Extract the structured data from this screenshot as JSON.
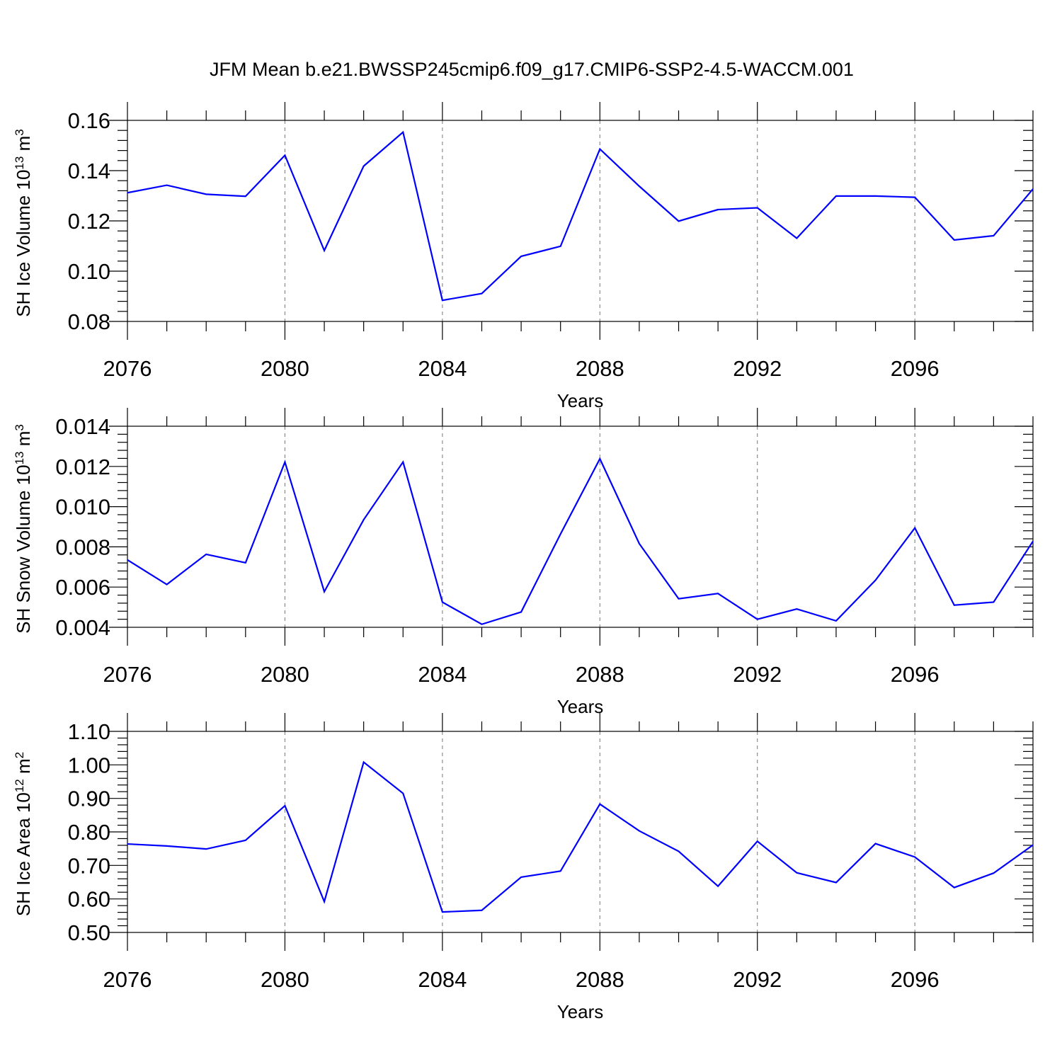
{
  "figure": {
    "title": "JFM Mean b.e21.BWSSP245cmip6.f09_g17.CMIP6-SSP2-4.5-WACCM.001",
    "line_color": "#0000ff"
  },
  "chart_data": [
    {
      "type": "line",
      "title": "",
      "xlabel": "Years",
      "ylabel": {
        "text": "SH Ice Volume 10",
        "exp": "13",
        "unit": " m",
        "unit_exp": "3"
      },
      "xlim": [
        2076,
        2099
      ],
      "ylim": [
        0.08,
        0.16
      ],
      "xticks": [
        "2076",
        "2080",
        "2084",
        "2088",
        "2092",
        "2096"
      ],
      "yticks": [
        "0.08",
        "0.10",
        "0.12",
        "0.14",
        "0.16"
      ],
      "grid": "vertical dashed at major x ticks",
      "x": [
        2076,
        2077,
        2078,
        2079,
        2080,
        2081,
        2082,
        2083,
        2084,
        2085,
        2086,
        2087,
        2088,
        2089,
        2090,
        2091,
        2092,
        2093,
        2094,
        2095,
        2096,
        2097,
        2098,
        2099
      ],
      "series": [
        {
          "values": [
            0.1312,
            0.1342,
            0.1306,
            0.1298,
            0.1461,
            0.1082,
            0.1418,
            0.1553,
            0.0884,
            0.0911,
            0.1059,
            0.1099,
            0.1486,
            0.1338,
            0.1199,
            0.1245,
            0.1252,
            0.1131,
            0.1299,
            0.1299,
            0.1294,
            0.1124,
            0.1141,
            0.1327
          ]
        }
      ]
    },
    {
      "type": "line",
      "title": "",
      "xlabel": "Years",
      "ylabel": {
        "text": "SH Snow Volume 10",
        "exp": "13",
        "unit": " m",
        "unit_exp": "3"
      },
      "xlim": [
        2076,
        2099
      ],
      "ylim": [
        0.004,
        0.014
      ],
      "xticks": [
        "2076",
        "2080",
        "2084",
        "2088",
        "2092",
        "2096"
      ],
      "yticks": [
        "0.004",
        "0.006",
        "0.008",
        "0.010",
        "0.012",
        "0.014"
      ],
      "grid": "vertical dashed at major x ticks",
      "x": [
        2076,
        2077,
        2078,
        2079,
        2080,
        2081,
        2082,
        2083,
        2084,
        2085,
        2086,
        2087,
        2088,
        2089,
        2090,
        2091,
        2092,
        2093,
        2094,
        2095,
        2096,
        2097,
        2098,
        2099
      ],
      "series": [
        {
          "values": [
            0.00735,
            0.00613,
            0.00763,
            0.00721,
            0.01222,
            0.00577,
            0.00935,
            0.01222,
            0.00525,
            0.00415,
            0.00476,
            0.00864,
            0.01238,
            0.00816,
            0.00542,
            0.00568,
            0.0044,
            0.00491,
            0.00432,
            0.00634,
            0.00894,
            0.0051,
            0.00525,
            0.00828
          ]
        }
      ]
    },
    {
      "type": "line",
      "title": "",
      "xlabel": "Years",
      "ylabel": {
        "text": "SH Ice Area 10",
        "exp": "12",
        "unit": " m",
        "unit_exp": "2"
      },
      "xlim": [
        2076,
        2099
      ],
      "ylim": [
        0.5,
        1.1
      ],
      "xticks": [
        "2076",
        "2080",
        "2084",
        "2088",
        "2092",
        "2096"
      ],
      "yticks": [
        "0.50",
        "0.60",
        "0.70",
        "0.80",
        "0.90",
        "1.00",
        "1.10"
      ],
      "grid": "vertical dashed at major x ticks",
      "x": [
        2076,
        2077,
        2078,
        2079,
        2080,
        2081,
        2082,
        2083,
        2084,
        2085,
        2086,
        2087,
        2088,
        2089,
        2090,
        2091,
        2092,
        2093,
        2094,
        2095,
        2096,
        2097,
        2098,
        2099
      ],
      "series": [
        {
          "values": [
            0.764,
            0.758,
            0.749,
            0.775,
            0.878,
            0.592,
            1.008,
            0.915,
            0.561,
            0.566,
            0.665,
            0.683,
            0.883,
            0.803,
            0.742,
            0.638,
            0.772,
            0.678,
            0.649,
            0.765,
            0.725,
            0.634,
            0.677,
            0.761
          ]
        }
      ]
    }
  ]
}
